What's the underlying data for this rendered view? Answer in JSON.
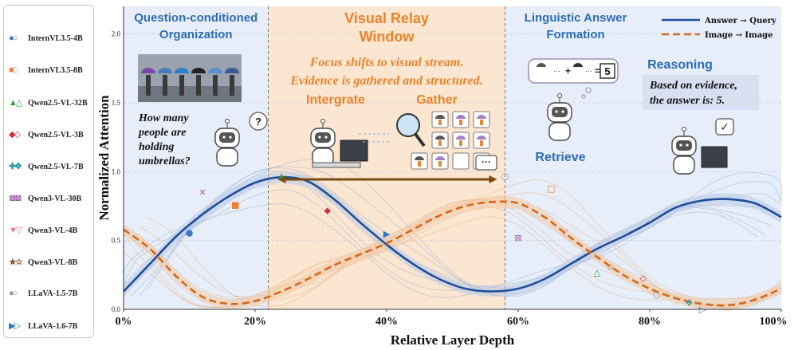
{
  "chart_data": {
    "type": "line",
    "xlabel": "Relative Layer Depth",
    "ylabel": "Normalized Attention",
    "xlim": [
      0,
      100
    ],
    "ylim": [
      0,
      2.2
    ],
    "xticks": [
      "0%",
      "20%",
      "40%",
      "60%",
      "80%",
      "100%"
    ],
    "yticks": [
      "0.0",
      "0.5",
      "1.0",
      "1.5",
      "2.0"
    ],
    "grid": true,
    "legend_position": "top-right",
    "series": [
      {
        "name": "Answer → Query",
        "color": "#1f4e9a",
        "style": "solid",
        "x": [
          0,
          4,
          8,
          12,
          16,
          20,
          24,
          28,
          32,
          36,
          40,
          44,
          48,
          52,
          56,
          60,
          64,
          68,
          72,
          76,
          80,
          84,
          88,
          92,
          96,
          100
        ],
        "y": [
          0.13,
          0.33,
          0.53,
          0.69,
          0.82,
          0.92,
          0.96,
          0.93,
          0.8,
          0.63,
          0.47,
          0.33,
          0.22,
          0.15,
          0.13,
          0.15,
          0.22,
          0.33,
          0.44,
          0.53,
          0.63,
          0.74,
          0.79,
          0.8,
          0.77,
          0.67
        ]
      },
      {
        "name": "Image → Image",
        "color": "#d2691e",
        "style": "dashed",
        "x": [
          0,
          4,
          8,
          12,
          16,
          20,
          24,
          28,
          32,
          36,
          40,
          44,
          48,
          52,
          56,
          60,
          64,
          68,
          72,
          76,
          80,
          84,
          88,
          92,
          96,
          100
        ],
        "y": [
          0.58,
          0.44,
          0.24,
          0.09,
          0.04,
          0.06,
          0.13,
          0.22,
          0.32,
          0.4,
          0.48,
          0.58,
          0.68,
          0.75,
          0.78,
          0.77,
          0.67,
          0.52,
          0.38,
          0.25,
          0.15,
          0.08,
          0.04,
          0.03,
          0.07,
          0.15
        ]
      }
    ],
    "model_points": [
      {
        "name": "InternVL3.5-4B",
        "x": 10,
        "y": 0.56,
        "color": "#4472c4",
        "marker": "●"
      },
      {
        "name": "InternVL3.5-8B",
        "x": 17,
        "y": 0.76,
        "color": "#f08030",
        "marker": "■"
      },
      {
        "name": "InternVL3.5-8B",
        "x": 65,
        "y": 0.88,
        "color": "#f08030",
        "marker": "□"
      },
      {
        "name": "Qwen2.5-VL-32B",
        "x": 24,
        "y": 0.97,
        "color": "#3a9a3a",
        "marker": "▲"
      },
      {
        "name": "Qwen2.5-VL-32B",
        "x": 72,
        "y": 0.27,
        "color": "#3a9a3a",
        "marker": "△"
      },
      {
        "name": "Qwen2.5-VL-3B",
        "x": 31,
        "y": 0.72,
        "color": "#d03040",
        "marker": "◆"
      },
      {
        "name": "Qwen2.5-VL-3B",
        "x": 79,
        "y": 0.23,
        "color": "#d03040",
        "marker": "◇"
      },
      {
        "name": "Qwen2.5-VL-7B",
        "x": 86,
        "y": 0.05,
        "color": "#2aa0a8",
        "marker": "✥"
      },
      {
        "name": "Qwen3-VL-30B",
        "x": 12,
        "y": 0.85,
        "color": "#a05fa8",
        "marker": "✕"
      },
      {
        "name": "Qwen3-VL-30B",
        "x": 60,
        "y": 0.52,
        "color": "#a05fa8",
        "marker": "⊠"
      },
      {
        "name": "Qwen3-VL-4B",
        "x": 67,
        "y": 0.56,
        "color": "#e87888",
        "marker": "▽"
      },
      {
        "name": "Qwen3-VL-8B",
        "x": 74,
        "y": 0.31,
        "color": "#8b5a2b",
        "marker": "☆"
      },
      {
        "name": "LLaVA-1.5-7B",
        "x": 58,
        "y": 0.97,
        "color": "#909090",
        "marker": "○"
      },
      {
        "name": "LLaVA-1.5-7B",
        "x": 81,
        "y": 0.11,
        "color": "#909090",
        "marker": "○"
      },
      {
        "name": "LLaVA-1.6-7B",
        "x": 40,
        "y": 0.55,
        "color": "#2a7ac0",
        "marker": "▶"
      },
      {
        "name": "LLaVA-1.6-7B",
        "x": 88,
        "y": 0.0,
        "color": "#2a7ac0",
        "marker": "▷"
      }
    ]
  },
  "phases": {
    "left_title": [
      "Question-conditioned",
      "Organization"
    ],
    "mid_title": [
      "Visual Relay",
      "Window"
    ],
    "right_title": [
      "Linguistic Answer",
      "Formation"
    ],
    "boundaries": [
      22,
      58
    ]
  },
  "annotations": {
    "question": [
      "How many",
      "people are",
      "holding",
      "umbrellas?"
    ],
    "question_bubble": "?",
    "focus_text": [
      "Focus shifts to visual stream.",
      "Evidence is  gathered and structured."
    ],
    "intergrate": "Intergrate",
    "gather": "Gather",
    "gather_more": "···",
    "equation_plus": "+",
    "equation_eq": "=",
    "equation_dots": "···",
    "equation_result": "5",
    "reasoning_title": "Reasoning",
    "reasoning_text": [
      "Based on evidence,",
      "the answer is: 5."
    ],
    "retrieve": "Retrieve",
    "check_bubble": "✓"
  },
  "legend_models": [
    {
      "name": "InternVL3.5-4B",
      "marker": "●○",
      "color": "#4472c4"
    },
    {
      "name": "InternVL3.5-8B",
      "marker": "■□",
      "color": "#f08030"
    },
    {
      "name": "Qwen2.5-VL-32B",
      "marker": "▲△",
      "color": "#3a9a3a"
    },
    {
      "name": "Qwen2.5-VL-3B",
      "marker": "◆◇",
      "color": "#d03040"
    },
    {
      "name": "Qwen2.5-VL-7B",
      "marker": "✚✥",
      "color": "#2aa0a8"
    },
    {
      "name": "Qwen3-VL-30B",
      "marker": "⊠⊠",
      "color": "#a05fa8"
    },
    {
      "name": "Qwen3-VL-4B",
      "marker": "▼▽",
      "color": "#e87888"
    },
    {
      "name": "Qwen3-VL-8B",
      "marker": "★☆",
      "color": "#8b5a2b"
    },
    {
      "name": "LLaVA-1.5-7B",
      "marker": "●○",
      "color": "#909090"
    },
    {
      "name": "LLaVA-1.6-7B",
      "marker": "▶▷",
      "color": "#2a7ac0"
    }
  ],
  "colors": {
    "left_bg": "#e7eef9",
    "mid_bg": "#fbe6d2",
    "right_bg": "#e7eef9",
    "blue_text": "#2e6db4",
    "orange_text": "#e8832a",
    "arrow": "#7a4a10"
  }
}
